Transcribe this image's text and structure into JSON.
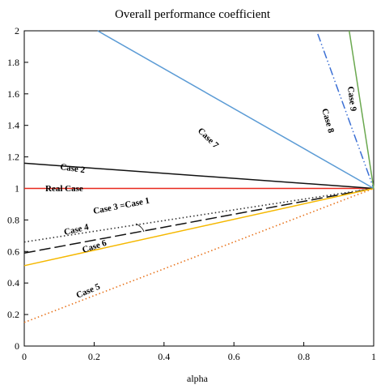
{
  "chart_data": {
    "type": "line",
    "title": "Overall performance coefficient",
    "xlabel": "alpha",
    "ylabel": "",
    "xlim": [
      0,
      1
    ],
    "ylim": [
      0,
      2
    ],
    "x_ticks": [
      0,
      0.2,
      0.4,
      0.6,
      0.8,
      1
    ],
    "y_ticks": [
      0,
      0.2,
      0.4,
      0.6,
      0.8,
      1,
      1.2,
      1.4,
      1.6,
      1.8,
      2
    ],
    "grid": false,
    "series": [
      {
        "name": "Real Case",
        "color": "#e8281c",
        "style": "solid",
        "points": [
          [
            0,
            1.0
          ],
          [
            1,
            1.0
          ]
        ]
      },
      {
        "name": "Case 2",
        "color": "#111111",
        "style": "solid",
        "points": [
          [
            0,
            1.16
          ],
          [
            1,
            1.0
          ]
        ]
      },
      {
        "name": "Case 3 =Case 1",
        "color": "#111111",
        "style": "longdash",
        "points": [
          [
            0,
            0.59
          ],
          [
            1,
            1.0
          ]
        ]
      },
      {
        "name": "Case 4",
        "color": "#333333",
        "style": "dotted",
        "points": [
          [
            0,
            0.66
          ],
          [
            1,
            1.0
          ]
        ]
      },
      {
        "name": "Case 5",
        "color": "#e8731c",
        "style": "dotted",
        "points": [
          [
            0,
            0.15
          ],
          [
            1,
            1.0
          ]
        ]
      },
      {
        "name": "Case 6",
        "color": "#f5b800",
        "style": "solid",
        "points": [
          [
            0,
            0.51
          ],
          [
            1,
            1.0
          ]
        ]
      },
      {
        "name": "Case 7",
        "color": "#5b9bd5",
        "style": "solid",
        "points": [
          [
            0.21,
            2.0
          ],
          [
            1,
            1.0
          ]
        ]
      },
      {
        "name": "Case 8",
        "color": "#3b6fd4",
        "style": "dashdotdot",
        "points": [
          [
            0.84,
            1.98
          ],
          [
            1,
            1.0
          ]
        ]
      },
      {
        "name": "Case 9",
        "color": "#6aa84f",
        "style": "solid",
        "points": [
          [
            0.93,
            2.0
          ],
          [
            1,
            1.0
          ]
        ]
      }
    ]
  }
}
